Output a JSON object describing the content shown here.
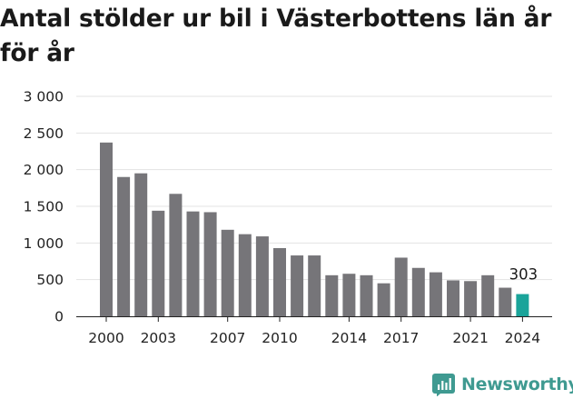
{
  "chart_data": {
    "type": "bar",
    "title": "Antal stölder ur bil i Västerbottens län år för år",
    "xlabel": "",
    "ylabel": "",
    "ylim": [
      0,
      3000
    ],
    "yticks": [
      0,
      500,
      1000,
      1500,
      2000,
      2500,
      3000
    ],
    "ytick_labels": [
      "0",
      "500",
      "1 000",
      "1 500",
      "2 000",
      "2 500",
      "3 000"
    ],
    "xtick_labels": [
      "2000",
      "2003",
      "2007",
      "2010",
      "2014",
      "2017",
      "2021",
      "2024"
    ],
    "grid": true,
    "categories": [
      "2000",
      "2001",
      "2002",
      "2003",
      "2004",
      "2005",
      "2006",
      "2007",
      "2008",
      "2009",
      "2010",
      "2011",
      "2012",
      "2013",
      "2014",
      "2015",
      "2016",
      "2017",
      "2018",
      "2019",
      "2020",
      "2021",
      "2022",
      "2023",
      "2024"
    ],
    "values": [
      2370,
      1900,
      1950,
      1440,
      1670,
      1430,
      1420,
      1180,
      1120,
      1090,
      930,
      830,
      830,
      560,
      580,
      560,
      450,
      800,
      660,
      600,
      490,
      480,
      560,
      390,
      303
    ],
    "bar_color": "#767579",
    "highlight_color": "#1aa49a",
    "highlight_category": "2024",
    "highlight_label": "303"
  },
  "brand": {
    "name": "Newsworthy",
    "icon": "newsworthy-logo-icon",
    "color": "#3f9a91"
  }
}
